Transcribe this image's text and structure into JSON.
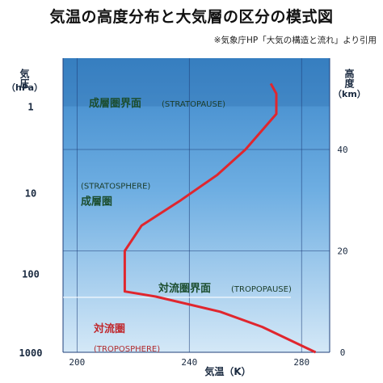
{
  "header": {
    "title": "気温の高度分布と大気層の区分の模式図",
    "source": "※気象庁HP「大気の構造と流れ」より引用"
  },
  "colors": {
    "background_top": "#3b86c9",
    "background_bottom": "#d4e8f7",
    "temperature_line": "#e0262e",
    "grid": "#1f3f7a"
  },
  "chart_data": {
    "type": "line",
    "xlabel": "気温（K）",
    "ylabel_left": "気圧",
    "ylabel_left_unit": "（hPa）",
    "ylabel_right": "高度",
    "ylabel_right_unit": "（km）",
    "xlim": [
      195,
      290
    ],
    "x_ticks": [
      "200",
      "240",
      "280"
    ],
    "x_tick_values": [
      200,
      240,
      280
    ],
    "y_right_lim": [
      0,
      58
    ],
    "y_right_ticks": [
      "0",
      "20",
      "40"
    ],
    "y_right_tick_values": [
      0,
      20,
      40
    ],
    "y_left_ticks": [
      "1",
      "10",
      "100",
      "1000"
    ],
    "y_left_tick_heights_km": [
      48.5,
      31.5,
      15.5,
      0
    ],
    "grid": true,
    "series": [
      {
        "temperature_K": [
          285,
          266,
          251,
          228,
          217,
          217,
          223,
          237,
          250,
          260,
          271,
          271,
          269
        ],
        "altitude_km": [
          0,
          5,
          8,
          11,
          12,
          20,
          25,
          30,
          35,
          40,
          47,
          51,
          53
        ]
      }
    ],
    "layers": [
      {
        "name": "成層圏界面",
        "english": "(STRATOPAUSE)",
        "altitude_km": 47.5,
        "style": "boundary"
      },
      {
        "name": "成層圏",
        "english": "(STRATOSPHERE)",
        "altitude_km": 30,
        "style": "layer"
      },
      {
        "name": "対流圏界面",
        "english": "(TROPOPAUSE)",
        "altitude_km": 11,
        "style": "boundary"
      },
      {
        "name": "対流圏",
        "english": "(TROPOSPHERE)",
        "altitude_km": 4,
        "style": "layer-red"
      }
    ]
  }
}
